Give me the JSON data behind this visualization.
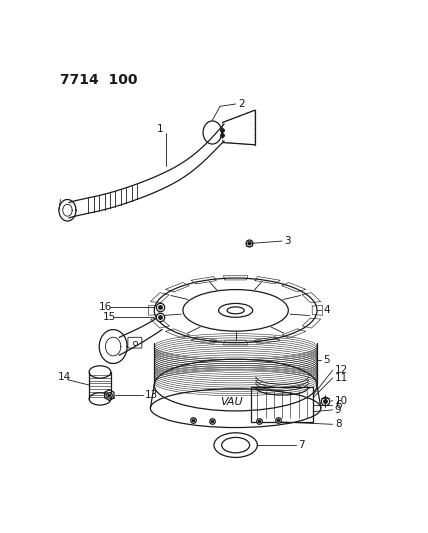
{
  "title": "7714  100",
  "bg_color": "#ffffff",
  "line_color": "#1a1a1a",
  "title_fontsize": 10,
  "label_fontsize": 7.5
}
